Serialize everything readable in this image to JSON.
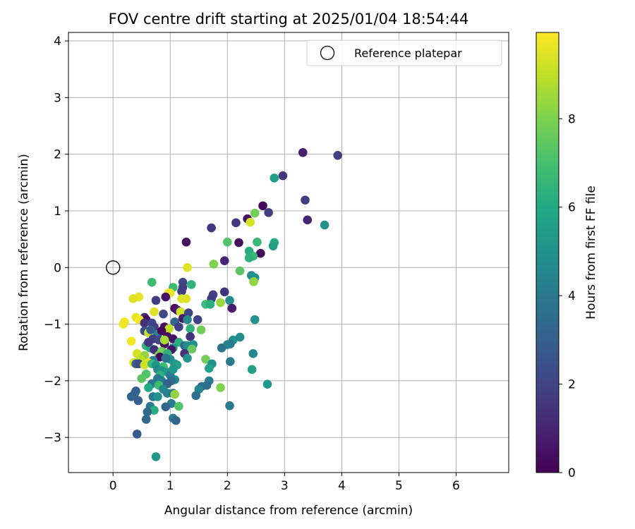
{
  "chart_data": {
    "type": "scatter",
    "title": "FOV centre drift starting at 2025/01/04 18:54:44",
    "xlabel": "Angular distance from reference (arcmin)",
    "ylabel": "Rotation from reference (arcmin)",
    "xlim": [
      -0.78,
      6.92
    ],
    "ylim": [
      -3.62,
      4.15
    ],
    "x_ticks": [
      0,
      1,
      2,
      3,
      4,
      5,
      6
    ],
    "y_ticks": [
      -3,
      -2,
      -1,
      0,
      1,
      2,
      3,
      4
    ],
    "x_tick_labels": [
      "0",
      "1",
      "2",
      "3",
      "4",
      "5",
      "6"
    ],
    "y_tick_labels": [
      "−3",
      "−2",
      "−1",
      "0",
      "1",
      "2",
      "3",
      "4"
    ],
    "grid": true,
    "legend": {
      "position": "top-right",
      "entries": [
        "Reference platepar"
      ]
    },
    "reference_point": {
      "name": "Reference platepar",
      "x": 0,
      "y": 0,
      "marker": "open-circle"
    },
    "colorbar": {
      "label": "Hours from first FF file",
      "range": [
        0,
        9.95
      ],
      "ticks": [
        0,
        2,
        4,
        6,
        8
      ],
      "tick_labels": [
        "0",
        "2",
        "4",
        "6",
        "8"
      ],
      "colormap": "viridis"
    },
    "series": [
      {
        "colored_by": "Hours from first FF file",
        "points": [
          {
            "x": 3.32,
            "y": 2.03,
            "c": 0.8
          },
          {
            "x": 3.93,
            "y": 1.98,
            "c": 1.8
          },
          {
            "x": 2.97,
            "y": 1.62,
            "c": 1.6
          },
          {
            "x": 2.82,
            "y": 1.58,
            "c": 5.5
          },
          {
            "x": 3.36,
            "y": 1.19,
            "c": 1.8
          },
          {
            "x": 2.62,
            "y": 1.09,
            "c": 0.3
          },
          {
            "x": 2.72,
            "y": 0.97,
            "c": 1.8
          },
          {
            "x": 2.48,
            "y": 0.96,
            "c": 7.8
          },
          {
            "x": 2.35,
            "y": 0.86,
            "c": 0.5
          },
          {
            "x": 3.4,
            "y": 0.84,
            "c": 1.0
          },
          {
            "x": 2.4,
            "y": 0.8,
            "c": 9.3
          },
          {
            "x": 2.15,
            "y": 0.79,
            "c": 1.6
          },
          {
            "x": 3.7,
            "y": 0.75,
            "c": 5.0
          },
          {
            "x": 1.72,
            "y": 0.7,
            "c": 1.6
          },
          {
            "x": 1.28,
            "y": 0.45,
            "c": 0.4
          },
          {
            "x": 2.0,
            "y": 0.45,
            "c": 7.2
          },
          {
            "x": 2.2,
            "y": 0.44,
            "c": 0.4
          },
          {
            "x": 2.52,
            "y": 0.45,
            "c": 6.6
          },
          {
            "x": 2.82,
            "y": 0.44,
            "c": 6.0
          },
          {
            "x": 2.8,
            "y": 0.38,
            "c": 5.5
          },
          {
            "x": 2.38,
            "y": 0.29,
            "c": 6.2
          },
          {
            "x": 2.58,
            "y": 0.25,
            "c": 0.3
          },
          {
            "x": 2.45,
            "y": 0.2,
            "c": 6.6
          },
          {
            "x": 2.38,
            "y": 0.17,
            "c": 6.4
          },
          {
            "x": 1.95,
            "y": 0.12,
            "c": 1.0
          },
          {
            "x": 1.76,
            "y": 0.06,
            "c": 8.0
          },
          {
            "x": 1.3,
            "y": 0.0,
            "c": 9.5
          },
          {
            "x": 2.22,
            "y": -0.06,
            "c": 7.4
          },
          {
            "x": 2.42,
            "y": -0.14,
            "c": 4.8
          },
          {
            "x": 2.48,
            "y": -0.18,
            "c": 5.0
          },
          {
            "x": 2.46,
            "y": -0.25,
            "c": 8.3
          },
          {
            "x": 0.68,
            "y": -0.26,
            "c": 6.8
          },
          {
            "x": 1.22,
            "y": -0.26,
            "c": 2.1
          },
          {
            "x": 1.37,
            "y": -0.3,
            "c": 6.4
          },
          {
            "x": 1.05,
            "y": -0.35,
            "c": 6.8
          },
          {
            "x": 1.22,
            "y": -0.35,
            "c": 1.8
          },
          {
            "x": 1.2,
            "y": -0.42,
            "c": 1.8
          },
          {
            "x": 0.97,
            "y": -0.45,
            "c": 9.8
          },
          {
            "x": 1.0,
            "y": -0.45,
            "c": 9.7
          },
          {
            "x": 1.75,
            "y": -0.48,
            "c": 1.9
          },
          {
            "x": 0.92,
            "y": -0.52,
            "c": 0.5
          },
          {
            "x": 0.45,
            "y": -0.52,
            "c": 9.6
          },
          {
            "x": 0.35,
            "y": -0.55,
            "c": 9.5
          },
          {
            "x": 1.95,
            "y": -0.43,
            "c": 1.5
          },
          {
            "x": 1.28,
            "y": -0.55,
            "c": 9.5
          },
          {
            "x": 1.72,
            "y": -0.55,
            "c": 1.8
          },
          {
            "x": 0.75,
            "y": -0.58,
            "c": 1.8
          },
          {
            "x": 1.2,
            "y": -0.55,
            "c": 9.4
          },
          {
            "x": 2.04,
            "y": -0.58,
            "c": 4.8
          },
          {
            "x": 1.88,
            "y": -0.62,
            "c": 8.4
          },
          {
            "x": 1.62,
            "y": -0.65,
            "c": 6.8
          },
          {
            "x": 1.7,
            "y": -0.65,
            "c": 6.2
          },
          {
            "x": 2.08,
            "y": -0.72,
            "c": 0.8
          },
          {
            "x": 1.08,
            "y": -0.72,
            "c": 0.3
          },
          {
            "x": 1.12,
            "y": -0.75,
            "c": 0.6
          },
          {
            "x": 0.72,
            "y": -0.78,
            "c": 9.5
          },
          {
            "x": 1.18,
            "y": -0.78,
            "c": 9.2
          },
          {
            "x": 1.32,
            "y": -0.8,
            "c": 2.1
          },
          {
            "x": 0.88,
            "y": -0.82,
            "c": 2.1
          },
          {
            "x": 1.48,
            "y": -0.92,
            "c": 1.9
          },
          {
            "x": 0.55,
            "y": -0.88,
            "c": 1.2
          },
          {
            "x": 0.58,
            "y": -0.92,
            "c": 0.4
          },
          {
            "x": 0.4,
            "y": -0.88,
            "c": 9.6
          },
          {
            "x": 0.46,
            "y": -0.92,
            "c": 9.8
          },
          {
            "x": 1.22,
            "y": -0.9,
            "c": 0.7
          },
          {
            "x": 1.3,
            "y": -0.92,
            "c": 4.6
          },
          {
            "x": 1.08,
            "y": -0.96,
            "c": 3.2
          },
          {
            "x": 0.2,
            "y": -0.96,
            "c": 9.8
          },
          {
            "x": 0.55,
            "y": -0.98,
            "c": 1.4
          },
          {
            "x": 0.68,
            "y": -0.98,
            "c": 2.1
          },
          {
            "x": 0.18,
            "y": -1.0,
            "c": 9.7
          },
          {
            "x": 2.48,
            "y": -0.92,
            "c": 5.0
          },
          {
            "x": 0.72,
            "y": -1.05,
            "c": 1.8
          },
          {
            "x": 0.9,
            "y": -1.05,
            "c": 0.4
          },
          {
            "x": 0.98,
            "y": -1.08,
            "c": 9.0
          },
          {
            "x": 1.35,
            "y": -1.08,
            "c": 6.4
          },
          {
            "x": 1.54,
            "y": -1.1,
            "c": 7.8
          },
          {
            "x": 0.55,
            "y": -1.12,
            "c": 2.4
          },
          {
            "x": 0.62,
            "y": -1.15,
            "c": 9.0
          },
          {
            "x": 0.78,
            "y": -1.18,
            "c": 4.6
          },
          {
            "x": 0.95,
            "y": -1.22,
            "c": 0.3
          },
          {
            "x": 1.35,
            "y": -1.22,
            "c": 1.5
          },
          {
            "x": 0.7,
            "y": -1.26,
            "c": 1.8
          },
          {
            "x": 0.8,
            "y": -1.28,
            "c": 2.0
          },
          {
            "x": 1.05,
            "y": -1.26,
            "c": 0.5
          },
          {
            "x": 2.1,
            "y": -1.28,
            "c": 5.0
          },
          {
            "x": 2.22,
            "y": -1.23,
            "c": 4.8
          },
          {
            "x": 0.32,
            "y": -1.3,
            "c": 9.8
          },
          {
            "x": 1.15,
            "y": -1.32,
            "c": 6.2
          },
          {
            "x": 2.05,
            "y": -1.35,
            "c": 4.0
          },
          {
            "x": 2.0,
            "y": -1.36,
            "c": 4.5
          },
          {
            "x": 1.4,
            "y": -1.36,
            "c": 5.0
          },
          {
            "x": 0.9,
            "y": -1.35,
            "c": 0.4
          },
          {
            "x": 0.58,
            "y": -1.38,
            "c": 6.4
          },
          {
            "x": 1.25,
            "y": -1.38,
            "c": 3.4
          },
          {
            "x": 1.3,
            "y": -1.38,
            "c": 4.8
          },
          {
            "x": 1.9,
            "y": -1.42,
            "c": 3.8
          },
          {
            "x": 0.65,
            "y": -1.42,
            "c": 6.0
          },
          {
            "x": 1.05,
            "y": -1.42,
            "c": 5.2
          },
          {
            "x": 1.38,
            "y": -1.44,
            "c": 7.6
          },
          {
            "x": 0.72,
            "y": -1.45,
            "c": 1.4
          },
          {
            "x": 1.02,
            "y": -1.45,
            "c": 0.5
          },
          {
            "x": 0.85,
            "y": -1.48,
            "c": 7.8
          },
          {
            "x": 1.25,
            "y": -1.52,
            "c": 1.4
          },
          {
            "x": 2.45,
            "y": -1.52,
            "c": 4.6
          },
          {
            "x": 0.42,
            "y": -1.52,
            "c": 9.3
          },
          {
            "x": 0.95,
            "y": -1.52,
            "c": 6.4
          },
          {
            "x": 0.55,
            "y": -1.55,
            "c": 8.3
          },
          {
            "x": 0.8,
            "y": -1.55,
            "c": 8.0
          },
          {
            "x": 0.82,
            "y": -1.58,
            "c": 0.3
          },
          {
            "x": 1.3,
            "y": -1.6,
            "c": 5.0
          },
          {
            "x": 1.62,
            "y": -1.62,
            "c": 7.8
          },
          {
            "x": 0.48,
            "y": -1.62,
            "c": 9.0
          },
          {
            "x": 0.7,
            "y": -1.64,
            "c": 4.2
          },
          {
            "x": 1.0,
            "y": -1.62,
            "c": 4.8
          },
          {
            "x": 0.62,
            "y": -1.68,
            "c": 9.6
          },
          {
            "x": 0.36,
            "y": -1.68,
            "c": 9.4
          },
          {
            "x": 0.4,
            "y": -1.7,
            "c": 3.0
          },
          {
            "x": 0.45,
            "y": -1.7,
            "c": 2.3
          },
          {
            "x": 0.55,
            "y": -1.72,
            "c": 9.2
          },
          {
            "x": 0.68,
            "y": -1.7,
            "c": 6.6
          },
          {
            "x": 0.75,
            "y": -1.72,
            "c": 5.2
          },
          {
            "x": 1.08,
            "y": -1.7,
            "c": 5.4
          },
          {
            "x": 1.12,
            "y": -1.72,
            "c": 5.6
          },
          {
            "x": 1.73,
            "y": -1.7,
            "c": 5.0
          },
          {
            "x": 2.05,
            "y": -1.66,
            "c": 4.0
          },
          {
            "x": 0.88,
            "y": -1.75,
            "c": 6.8
          },
          {
            "x": 1.68,
            "y": -1.78,
            "c": 5.6
          },
          {
            "x": 2.43,
            "y": -1.8,
            "c": 5.6
          },
          {
            "x": 0.78,
            "y": -1.8,
            "c": 4.6
          },
          {
            "x": 0.85,
            "y": -1.82,
            "c": 5.2
          },
          {
            "x": 0.95,
            "y": -1.85,
            "c": 5.4
          },
          {
            "x": 0.58,
            "y": -1.88,
            "c": 7.2
          },
          {
            "x": 0.82,
            "y": -1.9,
            "c": 6.4
          },
          {
            "x": 1.0,
            "y": -1.9,
            "c": 4.0
          },
          {
            "x": 0.5,
            "y": -1.96,
            "c": 7.4
          },
          {
            "x": 0.78,
            "y": -1.96,
            "c": 4.0
          },
          {
            "x": 1.08,
            "y": -1.98,
            "c": 4.6
          },
          {
            "x": 0.85,
            "y": -2.0,
            "c": 4.2
          },
          {
            "x": 1.02,
            "y": -2.0,
            "c": 3.5
          },
          {
            "x": 1.68,
            "y": -2.0,
            "c": 4.2
          },
          {
            "x": 2.7,
            "y": -2.06,
            "c": 5.2
          },
          {
            "x": 0.68,
            "y": -2.05,
            "c": 4.0
          },
          {
            "x": 0.95,
            "y": -2.05,
            "c": 3.0
          },
          {
            "x": 0.8,
            "y": -2.08,
            "c": 6.8
          },
          {
            "x": 1.55,
            "y": -2.1,
            "c": 3.6
          },
          {
            "x": 1.64,
            "y": -2.08,
            "c": 3.6
          },
          {
            "x": 1.88,
            "y": -2.12,
            "c": 8.0
          },
          {
            "x": 0.88,
            "y": -2.15,
            "c": 4.6
          },
          {
            "x": 1.5,
            "y": -2.15,
            "c": 4.4
          },
          {
            "x": 0.4,
            "y": -2.18,
            "c": 3.0
          },
          {
            "x": 0.38,
            "y": -2.22,
            "c": 3.2
          },
          {
            "x": 0.95,
            "y": -2.22,
            "c": 4.4
          },
          {
            "x": 1.05,
            "y": -2.22,
            "c": 3.8
          },
          {
            "x": 1.08,
            "y": -2.24,
            "c": 8.3
          },
          {
            "x": 1.45,
            "y": -2.26,
            "c": 3.6
          },
          {
            "x": 0.32,
            "y": -2.28,
            "c": 3.2
          },
          {
            "x": 0.7,
            "y": -2.28,
            "c": 4.0
          },
          {
            "x": 0.78,
            "y": -2.28,
            "c": 5.0
          },
          {
            "x": 0.44,
            "y": -2.35,
            "c": 3.0
          },
          {
            "x": 1.02,
            "y": -2.4,
            "c": 4.2
          },
          {
            "x": 2.04,
            "y": -2.44,
            "c": 4.0
          },
          {
            "x": 0.65,
            "y": -2.45,
            "c": 4.0
          },
          {
            "x": 0.92,
            "y": -2.46,
            "c": 3.2
          },
          {
            "x": 1.15,
            "y": -2.45,
            "c": 7.2
          },
          {
            "x": 0.72,
            "y": -2.52,
            "c": 6.2
          },
          {
            "x": 0.6,
            "y": -2.55,
            "c": 3.4
          },
          {
            "x": 1.05,
            "y": -2.66,
            "c": 4.0
          },
          {
            "x": 1.1,
            "y": -2.7,
            "c": 3.2
          },
          {
            "x": 0.58,
            "y": -2.68,
            "c": 3.4
          },
          {
            "x": 0.42,
            "y": -2.94,
            "c": 2.8
          },
          {
            "x": 0.75,
            "y": -3.34,
            "c": 5.2
          },
          {
            "x": 0.62,
            "y": -1.32,
            "c": 1.6
          },
          {
            "x": 0.66,
            "y": -1.1,
            "c": 2.8
          },
          {
            "x": 0.85,
            "y": -1.12,
            "c": 0.2
          },
          {
            "x": 1.15,
            "y": -1.05,
            "c": 1.9
          },
          {
            "x": 0.92,
            "y": -1.6,
            "c": 3.8
          },
          {
            "x": 1.05,
            "y": -1.8,
            "c": 5.2
          },
          {
            "x": 0.62,
            "y": -2.12,
            "c": 6.0
          },
          {
            "x": 0.9,
            "y": -1.28,
            "c": 8.6
          }
        ]
      }
    ]
  }
}
